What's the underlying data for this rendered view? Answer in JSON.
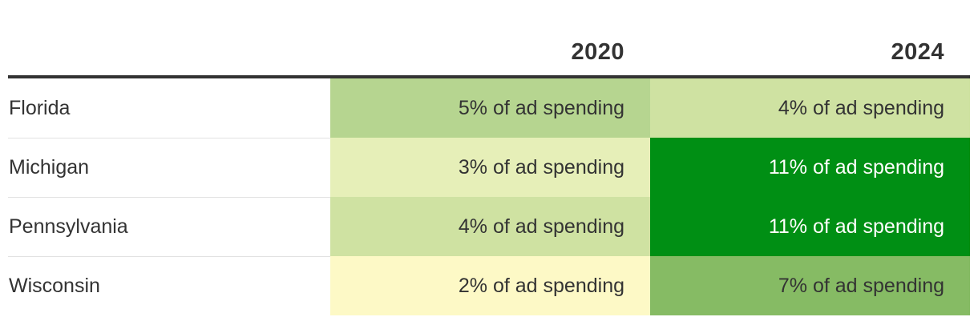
{
  "chart_data": {
    "type": "table",
    "columns": [
      "",
      "2020",
      "2024"
    ],
    "rows": [
      {
        "state": "Florida",
        "values": [
          5,
          4
        ],
        "labels": [
          "5% of ad spending",
          "4% of ad spending"
        ]
      },
      {
        "state": "Michigan",
        "values": [
          3,
          11
        ],
        "labels": [
          "3% of ad spending",
          "11% of ad spending"
        ]
      },
      {
        "state": "Pennsylvania",
        "values": [
          4,
          11
        ],
        "labels": [
          "4% of ad spending",
          "11% of ad spending"
        ]
      },
      {
        "state": "Wisconsin",
        "values": [
          2,
          7
        ],
        "labels": [
          "2% of ad spending",
          "7% of ad spending"
        ]
      }
    ],
    "color_scale": {
      "2": "#fdf9c6",
      "3": "#e6efb8",
      "4": "#cfe2a2",
      "5": "#b6d590",
      "7": "#86bb64",
      "11": "#008f14"
    },
    "text_colors": {
      "dark": "#333333",
      "light": "#ffffff"
    }
  }
}
